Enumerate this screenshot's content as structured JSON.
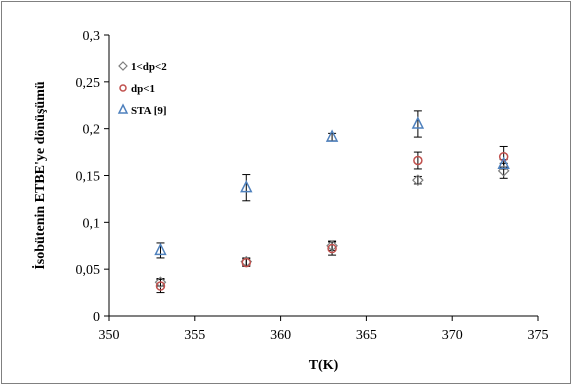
{
  "chart_data": {
    "type": "scatter",
    "title": "",
    "xlabel": "T(K)",
    "ylabel": "İsobütenin ETBE'ye dönüşümü",
    "xlim": [
      350,
      375
    ],
    "ylim": [
      0,
      0.3
    ],
    "x_ticks": [
      350,
      355,
      360,
      365,
      370,
      375
    ],
    "x_tick_labels": [
      "350",
      "355",
      "360",
      "365",
      "370",
      "375"
    ],
    "y_ticks": [
      0,
      0.05,
      0.1,
      0.15,
      0.2,
      0.25,
      0.3
    ],
    "y_tick_labels": [
      "0",
      "0,05",
      "0,1",
      "0,15",
      "0,2",
      "0,25",
      "0,3"
    ],
    "grid": false,
    "legend_position": "top-left",
    "series": [
      {
        "name": "1<dp<2",
        "marker": "diamond",
        "color": "#7f7f7f",
        "points": [
          {
            "x": 353,
            "y": 0.036,
            "err": 0.004
          },
          {
            "x": 358,
            "y": 0.058,
            "err": 0.004
          },
          {
            "x": 363,
            "y": 0.075,
            "err": 0.005
          },
          {
            "x": 368,
            "y": 0.145,
            "err": 0.004
          },
          {
            "x": 373,
            "y": 0.155,
            "err": 0.008
          }
        ]
      },
      {
        "name": "dp<1",
        "marker": "circle",
        "color": "#c0504d",
        "points": [
          {
            "x": 353,
            "y": 0.032,
            "err": 0.007
          },
          {
            "x": 358,
            "y": 0.057,
            "err": 0.004
          },
          {
            "x": 363,
            "y": 0.072,
            "err": 0.007
          },
          {
            "x": 368,
            "y": 0.166,
            "err": 0.009
          },
          {
            "x": 373,
            "y": 0.17,
            "err": 0.011
          }
        ]
      },
      {
        "name": "STA [9]",
        "marker": "triangle",
        "color": "#4f81bd",
        "points": [
          {
            "x": 353,
            "y": 0.07,
            "err": 0.008
          },
          {
            "x": 358,
            "y": 0.137,
            "err": 0.014
          },
          {
            "x": 363,
            "y": 0.191,
            "err": 0.004
          },
          {
            "x": 368,
            "y": 0.205,
            "err": 0.014
          },
          {
            "x": 373,
            "y": 0.162,
            "err": 0.005
          }
        ]
      }
    ]
  }
}
